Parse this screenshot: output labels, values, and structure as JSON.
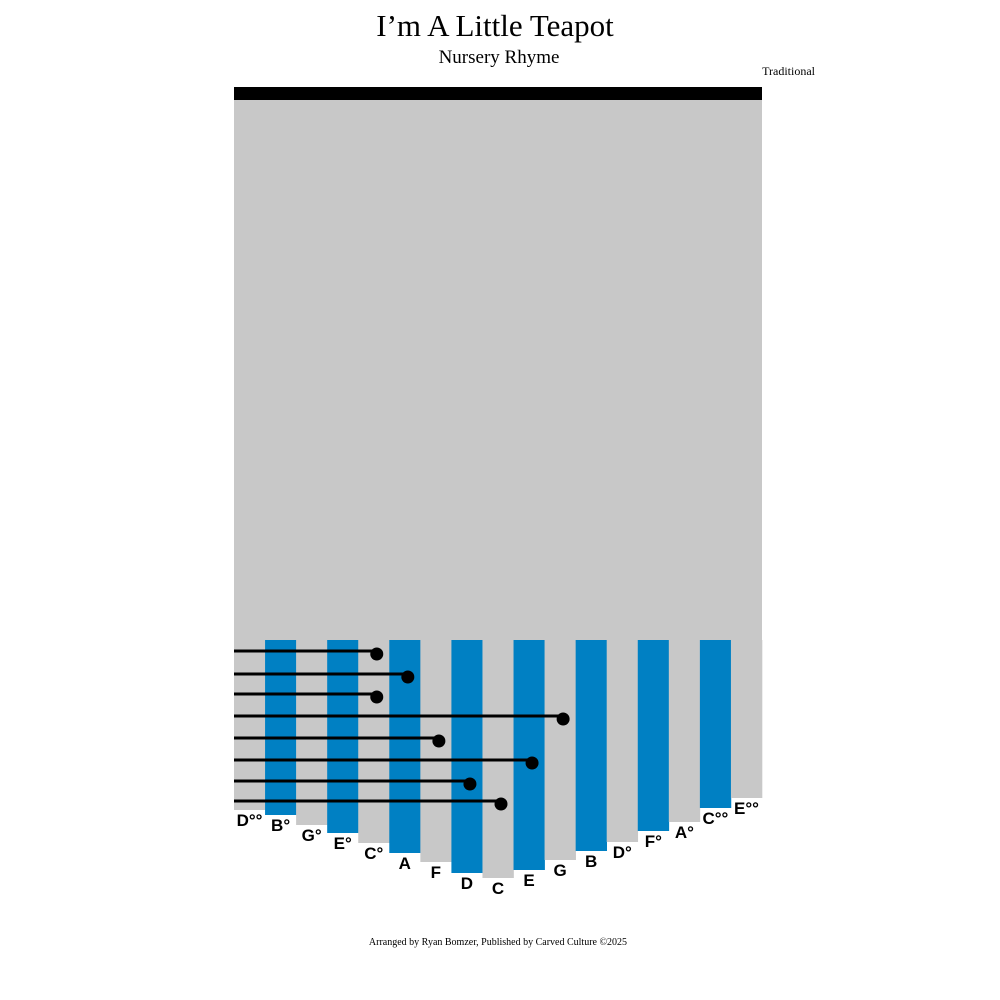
{
  "header": {
    "title": "I’m A Little Teapot",
    "subtitle": "Nursery Rhyme",
    "composer": "Traditional"
  },
  "keys": [
    "D°°",
    "B°",
    "G°",
    "E°",
    "C°",
    "A",
    "F",
    "D",
    "C",
    "E",
    "G",
    "B",
    "D°",
    "F°",
    "A°",
    "C°°",
    "E°°"
  ],
  "tab": [
    4,
    5,
    4,
    10,
    6,
    9,
    7,
    8
  ],
  "footer": "Arranged by Ryan Bomzer, Published by Carved Culture ©2025"
}
